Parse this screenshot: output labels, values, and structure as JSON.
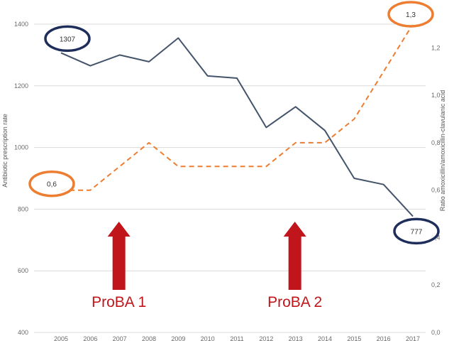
{
  "chart_data": {
    "type": "line",
    "x": [
      "2005",
      "2006",
      "2007",
      "2008",
      "2009",
      "2010",
      "2011",
      "2012",
      "2013",
      "2014",
      "2015",
      "2016",
      "2017"
    ],
    "series": [
      {
        "axis": "left",
        "style": "solid",
        "color": "#44546a",
        "values": [
          1307,
          1265,
          1300,
          1278,
          1355,
          1232,
          1225,
          1065,
          1132,
          1055,
          900,
          880,
          777
        ]
      },
      {
        "axis": "right",
        "style": "dashed",
        "color": "#ed7d31",
        "values": [
          0.6,
          0.6,
          0.7,
          0.8,
          0.7,
          0.7,
          0.7,
          0.7,
          0.8,
          0.8,
          0.9,
          1.1,
          1.3
        ]
      }
    ],
    "ylabel": "Antibiotic prescription rate",
    "ylabel_right": "Ratio amoxicillin/amoxicillin-clavulanic acid",
    "ylim": [
      400,
      1400
    ],
    "ylim_right": [
      0,
      1.3
    ],
    "yticks": [
      "400",
      "600",
      "800",
      "1000",
      "1200",
      "1400"
    ],
    "yticks_right": [
      "0,0",
      "0,2",
      "0,4",
      "0,6",
      "0,8",
      "1,0",
      "1,2"
    ],
    "grid": "horizontal",
    "callouts": [
      {
        "text": "1307",
        "color": "#1f2d5a",
        "series": 0,
        "index": 0
      },
      {
        "text": "777",
        "color": "#1f2d5a",
        "series": 0,
        "index": 12
      },
      {
        "text": "0,6",
        "color": "#ed7d31",
        "series": 1,
        "index": 0
      },
      {
        "text": "1,3",
        "color": "#ed7d31",
        "series": 1,
        "index": 12
      }
    ],
    "annotations": [
      {
        "text": "ProBA 1",
        "x": "2007",
        "color": "#c0151a"
      },
      {
        "text": "ProBA 2",
        "x": "2013",
        "color": "#c0151a"
      }
    ]
  }
}
